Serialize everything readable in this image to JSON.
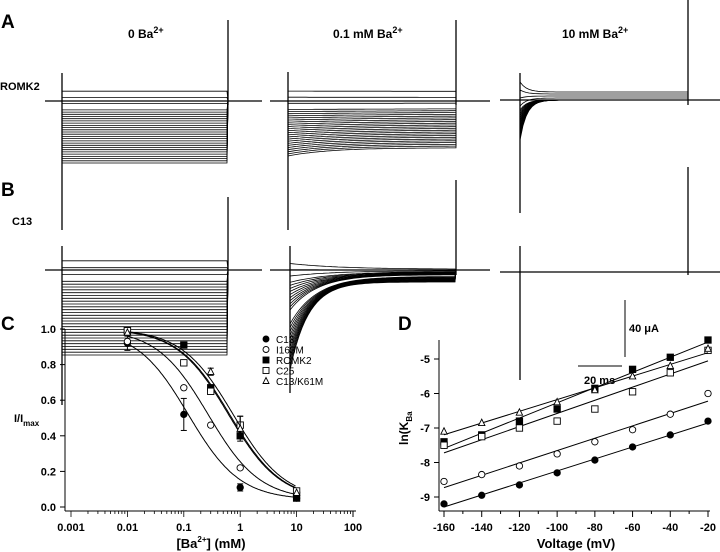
{
  "panel_labels": {
    "a": "A",
    "b": "B",
    "c": "C",
    "d": "D"
  },
  "traces": {
    "conditions": [
      "0 Ba",
      "0.1 mM Ba",
      "10 mM Ba"
    ],
    "superscript": "2+",
    "rows": [
      "ROMK2",
      "C13"
    ],
    "scale_current": "40 μA",
    "scale_time": "20 ms"
  },
  "chart_data": [
    {
      "type": "scatter",
      "panel": "C",
      "xlabel": "[Ba2+] (mM)",
      "xlabel_parts": {
        "pre": "[Ba",
        "sup": "2+",
        "post": "] (mM)"
      },
      "ylabel": "I/Imax",
      "ylabel_parts": {
        "main": "I/I",
        "sub": "max"
      },
      "xscale": "log",
      "xlim": [
        0.001,
        100
      ],
      "ylim": [
        0,
        1.0
      ],
      "xticks": [
        "0.001",
        "0.01",
        "0.1",
        "1",
        "10",
        "100"
      ],
      "xtick_values": [
        0.001,
        0.01,
        0.1,
        1,
        10,
        100
      ],
      "yticks": [
        "0.0",
        "0.2",
        "0.4",
        "0.6",
        "0.8",
        "1.0"
      ],
      "ytick_values": [
        0,
        0.2,
        0.4,
        0.6,
        0.8,
        1.0
      ],
      "legend_position": "top-right",
      "series": [
        {
          "name": "C13",
          "marker": "filled-circle",
          "x": [
            0.01,
            0.1,
            1,
            10
          ],
          "y": [
            0.92,
            0.52,
            0.11,
            0.05
          ],
          "err": [
            0.04,
            0.09,
            0.02,
            0
          ],
          "ic50": 0.12
        },
        {
          "name": "I163M",
          "marker": "open-circle",
          "x": [
            0.01,
            0.1,
            0.3,
            1,
            10
          ],
          "y": [
            0.93,
            0.67,
            0.46,
            0.22,
            0.08
          ],
          "err": [
            0,
            0,
            0,
            0,
            0
          ],
          "ic50": 0.27
        },
        {
          "name": "ROMK2",
          "marker": "filled-square",
          "x": [
            0.01,
            0.1,
            0.3,
            1,
            10
          ],
          "y": [
            0.99,
            0.91,
            0.67,
            0.4,
            0.05
          ],
          "err": [
            0,
            0,
            0,
            0,
            0
          ],
          "ic50": 0.62
        },
        {
          "name": "C25",
          "marker": "open-square",
          "x": [
            0.01,
            0.1,
            0.3,
            1,
            10
          ],
          "y": [
            0.99,
            0.81,
            0.65,
            0.46,
            0.09
          ],
          "err": [
            0,
            0,
            0,
            0.05,
            0
          ],
          "ic50": 0.65
        },
        {
          "name": "C13/K61M",
          "marker": "open-triangle",
          "x": [
            0.01,
            0.3,
            1,
            10
          ],
          "y": [
            0.98,
            0.76,
            0.44,
            0.08
          ],
          "err": [
            0,
            0.02,
            0.07,
            0
          ],
          "ic50": 0.75
        }
      ]
    },
    {
      "type": "scatter",
      "panel": "D",
      "xlabel": "Voltage (mV)",
      "ylabel": "ln(KBa",
      "ylabel_parts": {
        "main": "ln(K",
        "sub": "Ba"
      },
      "xlim": [
        -163,
        -17
      ],
      "ylim": [
        -9.4,
        -4.4
      ],
      "xticks": [
        "-160",
        "-140",
        "-120",
        "-100",
        "-80",
        "-60",
        "-40",
        "-20"
      ],
      "xtick_values": [
        -160,
        -140,
        -120,
        -100,
        -80,
        -60,
        -40,
        -20
      ],
      "yticks": [
        "-9",
        "-8",
        "-7",
        "-6",
        "-5"
      ],
      "ytick_values": [
        -9,
        -8,
        -7,
        -6,
        -5
      ],
      "x": [
        -160,
        -140,
        -120,
        -100,
        -80,
        -60,
        -40,
        -20
      ],
      "series": [
        {
          "name": "C13",
          "marker": "filled-circle",
          "y": [
            -9.2,
            -8.95,
            -8.65,
            -8.3,
            -7.93,
            -7.55,
            -7.2,
            -6.8
          ]
        },
        {
          "name": "I163M",
          "marker": "open-circle",
          "y": [
            -8.55,
            -8.35,
            -8.1,
            -7.75,
            -7.4,
            -7.05,
            -6.6,
            -6.0
          ]
        },
        {
          "name": "ROMK2",
          "marker": "filled-square",
          "y": [
            -7.4,
            -7.2,
            -6.8,
            -6.45,
            -5.85,
            -5.3,
            -4.95,
            -4.45
          ]
        },
        {
          "name": "C25",
          "marker": "open-square",
          "y": [
            -7.5,
            -7.25,
            -7.0,
            -6.8,
            -6.45,
            -5.95,
            -5.4,
            -4.75
          ]
        },
        {
          "name": "C13/K61M",
          "marker": "open-triangle",
          "y": [
            -7.1,
            -6.85,
            -6.55,
            -6.25,
            -5.9,
            -5.5,
            -5.2,
            -4.7
          ]
        }
      ]
    }
  ]
}
